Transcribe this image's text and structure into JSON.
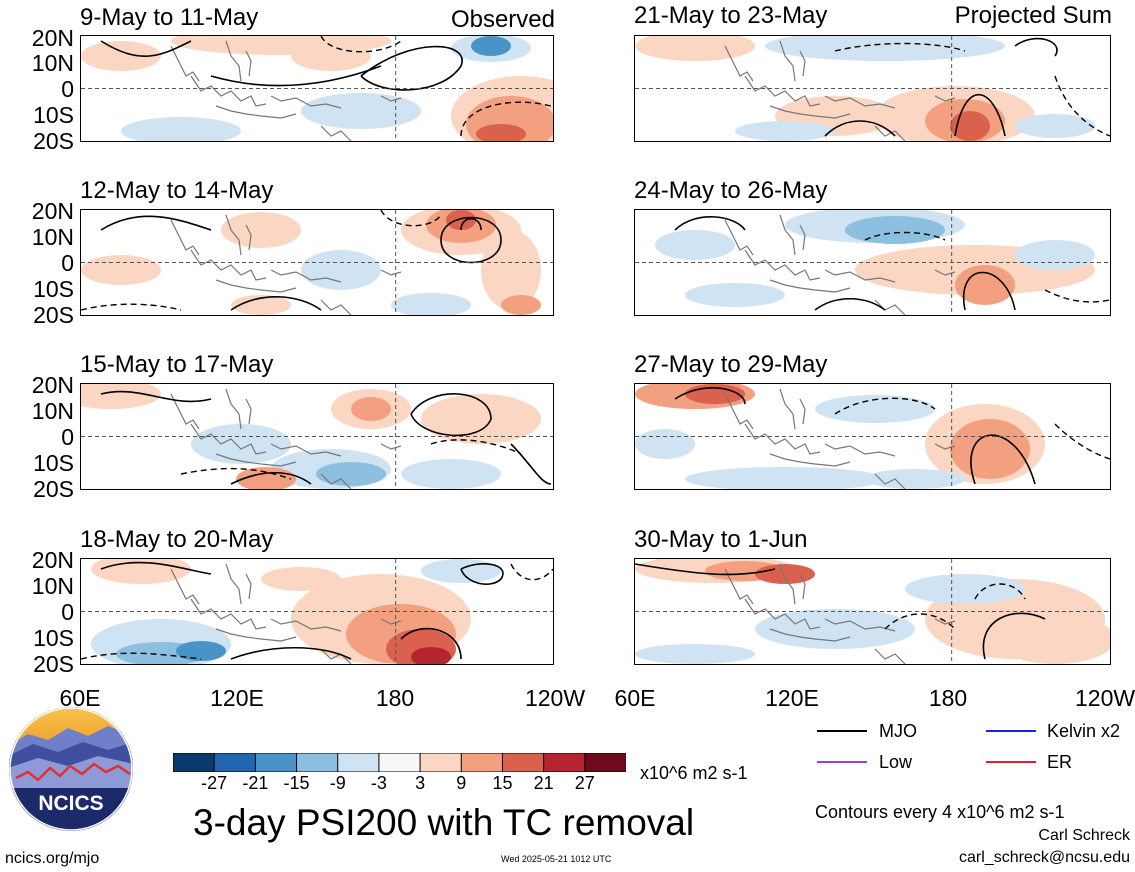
{
  "panels": [
    {
      "title": "9-May to 11-May",
      "corner": "Observed"
    },
    {
      "title": "12-May to 14-May",
      "corner": ""
    },
    {
      "title": "15-May to 17-May",
      "corner": ""
    },
    {
      "title": "18-May to 20-May",
      "corner": ""
    },
    {
      "title": "21-May to 23-May",
      "corner": "Projected Sum"
    },
    {
      "title": "24-May to 26-May",
      "corner": ""
    },
    {
      "title": "27-May to 29-May",
      "corner": ""
    },
    {
      "title": "30-May to 1-Jun",
      "corner": ""
    }
  ],
  "lat_labels": [
    "20N",
    "10N",
    "0",
    "10S",
    "20S"
  ],
  "lon_labels": [
    "60E",
    "120E",
    "180",
    "120W"
  ],
  "colorbar": {
    "colors": [
      "#0a3a6b",
      "#2266b0",
      "#4a93c8",
      "#8cbfe0",
      "#cfe3f2",
      "#f7f7f7",
      "#fbd6c2",
      "#f2a07f",
      "#d9614e",
      "#b52530",
      "#6e0a1c"
    ],
    "tick_labels": [
      "-27",
      "-21",
      "-15",
      "-9",
      "-3",
      "3",
      "9",
      "15",
      "21",
      "27"
    ],
    "units": "x10^6 m2 s-1"
  },
  "legend": {
    "mjo": {
      "label": "MJO",
      "color": "#000000"
    },
    "kelvin": {
      "label": "Kelvin x2",
      "color": "#1f1fe0"
    },
    "low": {
      "label": "Low",
      "color": "#9b40d8"
    },
    "er": {
      "label": "ER",
      "color": "#e02020"
    }
  },
  "logo": {
    "text": "NCICS"
  },
  "main_title": "3-day PSI200 with TC removal",
  "contours_note": "Contours every 4 x10^6 m2 s-1",
  "author": "Carl Schreck",
  "email": "carl_schreck@ncsu.edu",
  "website": "ncics.org/mjo",
  "timestamp": "Wed 2025-05-21 1012 UTC"
}
